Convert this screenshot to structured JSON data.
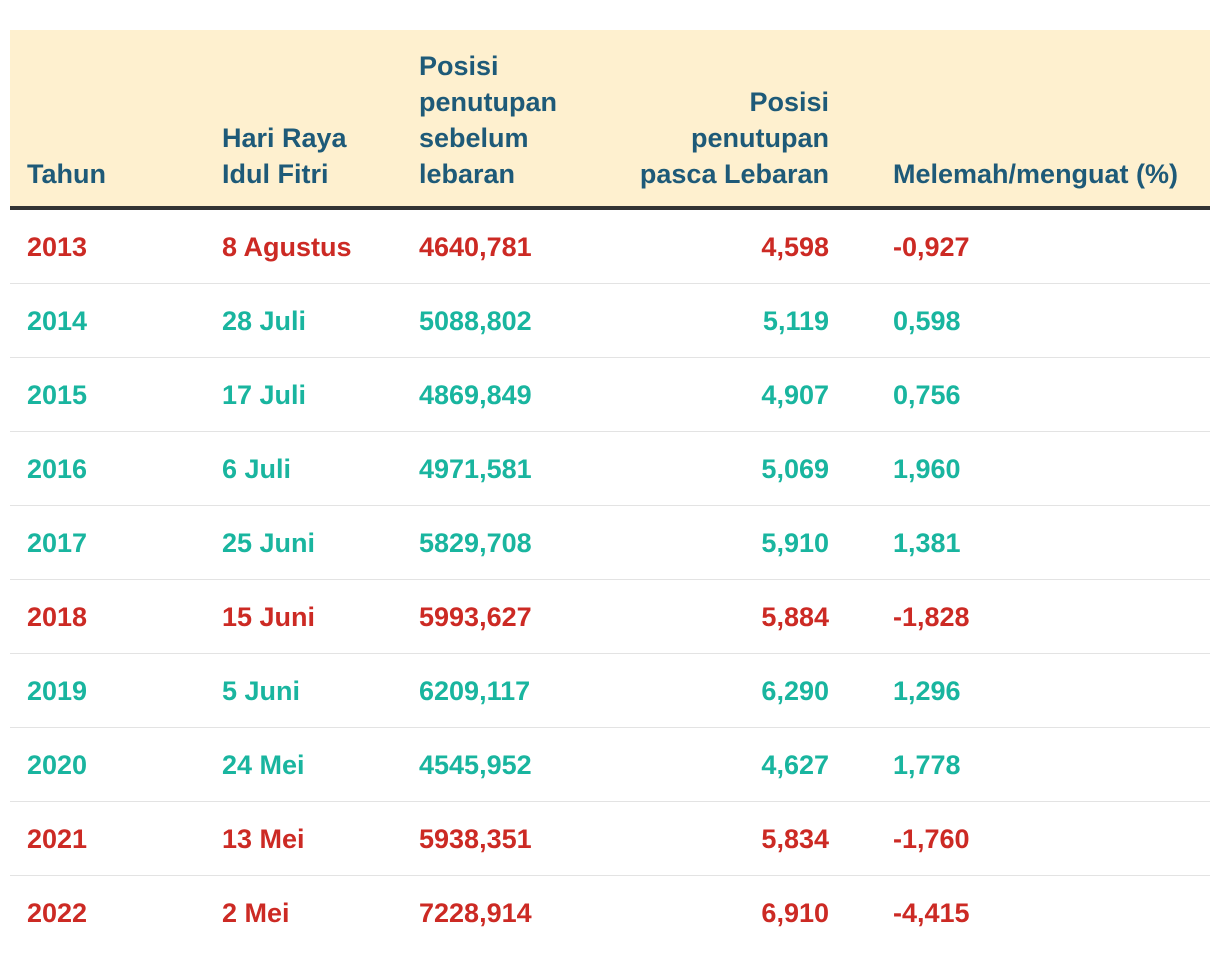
{
  "colors": {
    "header_bg": "#fef0cf",
    "header_text": "#1e5a78",
    "negative": "#cc2a24",
    "positive": "#19b59f"
  },
  "chart_data": {
    "type": "table",
    "columns": [
      "Tahun",
      "Hari Raya Idul Fitri",
      "Posisi penutupan sebelum lebaran",
      "Posisi penutupan pasca Lebaran",
      "Melemah/menguat (%)"
    ],
    "rows": [
      {
        "tahun": "2013",
        "hari_raya": "8 Agustus",
        "sebelum": "4640,781",
        "pasca": "4,598",
        "perubahan": "-0,927",
        "trend": "negative"
      },
      {
        "tahun": "2014",
        "hari_raya": "28 Juli",
        "sebelum": "5088,802",
        "pasca": "5,119",
        "perubahan": "0,598",
        "trend": "positive"
      },
      {
        "tahun": "2015",
        "hari_raya": "17 Juli",
        "sebelum": "4869,849",
        "pasca": "4,907",
        "perubahan": "0,756",
        "trend": "positive"
      },
      {
        "tahun": "2016",
        "hari_raya": "6 Juli",
        "sebelum": "4971,581",
        "pasca": "5,069",
        "perubahan": "1,960",
        "trend": "positive"
      },
      {
        "tahun": "2017",
        "hari_raya": "25 Juni",
        "sebelum": "5829,708",
        "pasca": "5,910",
        "perubahan": "1,381",
        "trend": "positive"
      },
      {
        "tahun": "2018",
        "hari_raya": "15 Juni",
        "sebelum": "5993,627",
        "pasca": "5,884",
        "perubahan": "-1,828",
        "trend": "negative"
      },
      {
        "tahun": "2019",
        "hari_raya": "5 Juni",
        "sebelum": "6209,117",
        "pasca": "6,290",
        "perubahan": "1,296",
        "trend": "positive"
      },
      {
        "tahun": "2020",
        "hari_raya": "24 Mei",
        "sebelum": "4545,952",
        "pasca": "4,627",
        "perubahan": "1,778",
        "trend": "positive"
      },
      {
        "tahun": "2021",
        "hari_raya": "13 Mei",
        "sebelum": "5938,351",
        "pasca": "5,834",
        "perubahan": "-1,760",
        "trend": "negative"
      },
      {
        "tahun": "2022",
        "hari_raya": "2 Mei",
        "sebelum": "7228,914",
        "pasca": "6,910",
        "perubahan": "-4,415",
        "trend": "negative"
      }
    ]
  }
}
